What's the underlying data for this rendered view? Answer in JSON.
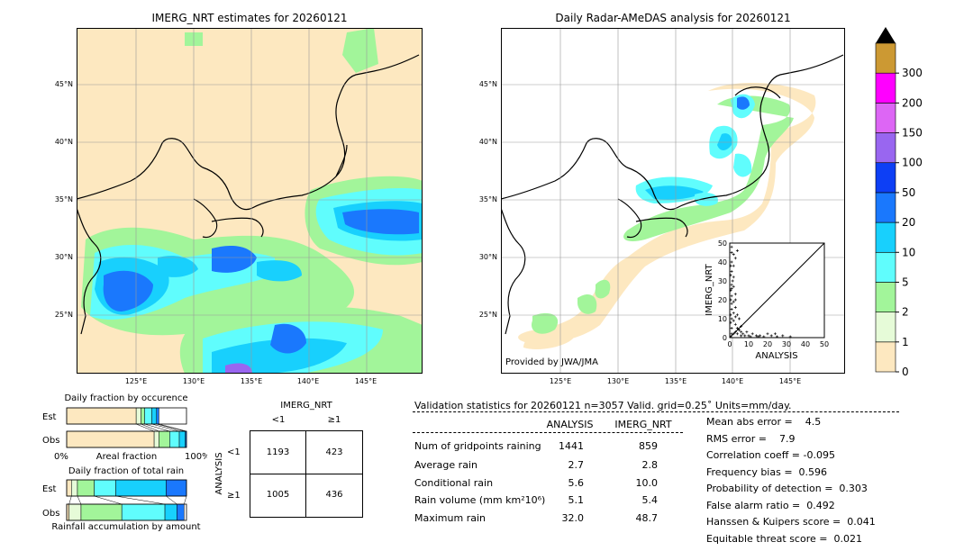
{
  "left_map": {
    "title": "IMERG_NRT estimates for 20260121",
    "lat_labels": [
      "45°N",
      "40°N",
      "35°N",
      "30°N",
      "25°N"
    ],
    "lon_labels": [
      "125°E",
      "130°E",
      "135°E",
      "140°E",
      "145°E"
    ]
  },
  "right_map": {
    "title": "Daily Radar-AMeDAS analysis for 20260121",
    "lat_labels": [
      "45°N",
      "40°N",
      "35°N",
      "30°N",
      "25°N"
    ],
    "lon_labels": [
      "125°E",
      "130°E",
      "135°E",
      "140°E",
      "145°E"
    ],
    "credit": "Provided by JWA/JMA"
  },
  "colorbar": {
    "levels": [
      "0",
      "1",
      "2",
      "5",
      "10",
      "20",
      "50",
      "100",
      "150",
      "200",
      "300"
    ],
    "colors": [
      "#fde8c0",
      "#e6fbd8",
      "#a2f59a",
      "#60fdfd",
      "#18d0fd",
      "#1a78fd",
      "#0d3ff5",
      "#9966f0",
      "#dd66f5",
      "#ff00ff",
      "#cc9933"
    ],
    "overflow_color": "#000000"
  },
  "chart_data": [
    {
      "type": "bar",
      "title": "Daily fraction by occurence",
      "xlabel": "Areal fraction",
      "x_ticks": [
        "0%",
        "100%"
      ],
      "categories": [
        "Est",
        "Obs"
      ],
      "series": [
        {
          "values": [
            0.58,
            0.73
          ]
        },
        {
          "values": [
            0.04,
            0.04
          ]
        },
        {
          "values": [
            0.03,
            0.09
          ]
        },
        {
          "values": [
            0.06,
            0.08
          ]
        },
        {
          "values": [
            0.04,
            0.05
          ]
        },
        {
          "values": [
            0.02,
            0.01
          ]
        }
      ]
    },
    {
      "type": "bar",
      "title": "Daily fraction of total rain",
      "xlabel": "Rainfall accumulation by amount",
      "categories": [
        "Est",
        "Obs"
      ],
      "series": [
        {
          "values": [
            0.04,
            0.02
          ]
        },
        {
          "values": [
            0.05,
            0.1
          ]
        },
        {
          "values": [
            0.14,
            0.34
          ]
        },
        {
          "values": [
            0.18,
            0.36
          ]
        },
        {
          "values": [
            0.42,
            0.1
          ]
        },
        {
          "values": [
            0.17,
            0.06
          ]
        }
      ]
    },
    {
      "type": "table",
      "title": "IMERG_NRT",
      "col_labels": [
        "<1",
        "≥1"
      ],
      "row_title": "ANALYSIS",
      "row_labels": [
        "<1",
        "≥1"
      ],
      "cells": [
        [
          "1193",
          "423"
        ],
        [
          "1005",
          "436"
        ]
      ]
    },
    {
      "type": "scatter",
      "xlabel": "ANALYSIS",
      "ylabel": "IMERG_NRT",
      "xlim": [
        0,
        50
      ],
      "ylim": [
        0,
        50
      ],
      "ticks": [
        "0",
        "10",
        "20",
        "30",
        "40",
        "50"
      ],
      "points": [
        [
          0.5,
          0.5
        ],
        [
          1,
          2
        ],
        [
          1,
          5
        ],
        [
          0.5,
          8
        ],
        [
          1,
          10
        ],
        [
          0.5,
          12
        ],
        [
          1,
          15
        ],
        [
          1,
          18
        ],
        [
          0.5,
          20
        ],
        [
          1,
          22
        ],
        [
          0.5,
          25
        ],
        [
          1,
          28
        ],
        [
          1.5,
          30
        ],
        [
          0.5,
          33
        ],
        [
          1,
          35
        ],
        [
          2,
          38
        ],
        [
          1,
          40
        ],
        [
          3,
          42
        ],
        [
          2,
          44
        ],
        [
          4,
          46
        ],
        [
          1,
          48
        ],
        [
          2,
          27
        ],
        [
          3,
          23
        ],
        [
          2,
          19
        ],
        [
          3,
          16
        ],
        [
          2,
          13
        ],
        [
          3,
          11
        ],
        [
          2,
          9
        ],
        [
          3,
          7
        ],
        [
          4,
          5
        ],
        [
          5,
          4
        ],
        [
          6,
          3
        ],
        [
          7,
          2
        ],
        [
          8,
          1
        ],
        [
          10,
          1
        ],
        [
          12,
          2
        ],
        [
          14,
          1
        ],
        [
          16,
          1
        ],
        [
          18,
          0.5
        ],
        [
          20,
          2
        ],
        [
          22,
          1
        ],
        [
          25,
          0.5
        ],
        [
          28,
          1
        ],
        [
          32,
          0.5
        ],
        [
          5,
          10
        ],
        [
          6,
          6
        ],
        [
          4,
          12
        ],
        [
          3,
          3
        ],
        [
          2,
          2
        ],
        [
          4,
          2
        ],
        [
          6,
          1
        ],
        [
          9,
          3
        ],
        [
          11,
          0.5
        ],
        [
          15,
          0.5
        ],
        [
          24,
          2
        ],
        [
          1,
          45
        ],
        [
          0.5,
          38
        ],
        [
          2,
          32
        ],
        [
          1,
          26
        ],
        [
          3,
          20
        ]
      ]
    }
  ],
  "validation": {
    "header": "Validation statistics for 20260121  n=3057 Valid. grid=0.25˚ Units=mm/day.",
    "col_analysis": "ANALYSIS",
    "col_imerg": "IMERG_NRT",
    "rows": [
      {
        "label": "Num of gridpoints raining",
        "analysis": "1441",
        "imerg": "859"
      },
      {
        "label": "Average rain",
        "analysis": "2.7",
        "imerg": "2.8"
      },
      {
        "label": "Conditional rain",
        "analysis": "5.6",
        "imerg": "10.0"
      },
      {
        "label": "Rain volume (mm km²10⁶)",
        "analysis": "5.1",
        "imerg": "5.4"
      },
      {
        "label": "Maximum rain",
        "analysis": "32.0",
        "imerg": "48.7"
      }
    ],
    "scores": [
      "Mean abs error =    4.5",
      "RMS error =    7.9",
      "Correlation coeff = -0.095",
      "Frequency bias =  0.596",
      "Probability of detection =  0.303",
      "False alarm ratio =  0.492",
      "Hanssen & Kuipers score =  0.041",
      "Equitable threat score =  0.021"
    ]
  }
}
